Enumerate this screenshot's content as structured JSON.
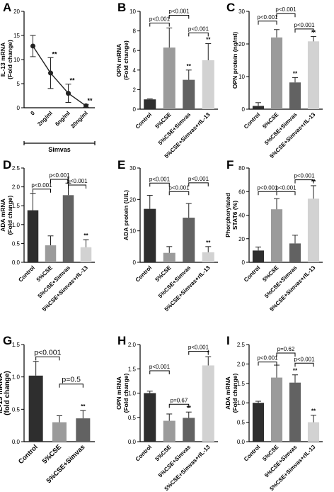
{
  "chart_data": [
    {
      "letter": "A",
      "type": "line",
      "ylabel": [
        "IL-13 mRNA",
        "(Fold change)"
      ],
      "categories": [
        "0",
        "2ng/ml",
        "6ng/ml",
        "20ng/ml"
      ],
      "values": [
        12.8,
        7.2,
        3.0,
        0.4
      ],
      "errors": [
        2.2,
        3.2,
        1.9,
        0.3
      ],
      "stars": [
        "",
        "**",
        "**",
        "**"
      ],
      "ylim": [
        0,
        20
      ],
      "yticks": [
        0,
        5,
        10,
        15,
        20
      ],
      "group_label": "Simvas",
      "brackets": []
    },
    {
      "letter": "B",
      "type": "bar",
      "ylabel": [
        "OPN mRNA",
        "(Fold change)"
      ],
      "categories": [
        "Control",
        "5%CSE",
        "5%CSE+Simvas",
        "5%CSE+Simvas+rIL-13"
      ],
      "values": [
        1.0,
        6.3,
        3.0,
        5.0
      ],
      "errors": [
        0.05,
        2.0,
        1.0,
        1.7
      ],
      "stars": [
        "",
        "",
        "**",
        "**"
      ],
      "ylim": [
        0,
        10
      ],
      "yticks": [
        0,
        2,
        4,
        6,
        8,
        10
      ],
      "brackets": [
        {
          "from": 0,
          "to": 1,
          "label": "p<0.001",
          "y": 8.8
        },
        {
          "from": 1,
          "to": 2,
          "label": "p<0.001",
          "y": 9.6
        },
        {
          "from": 2,
          "to": 3,
          "label": "p<0.001",
          "y": 7.8
        }
      ]
    },
    {
      "letter": "C",
      "type": "bar",
      "ylabel": [
        "OPN protein (ng/ml)"
      ],
      "categories": [
        "Control",
        "5%CSE",
        "5%CSE+Simvas",
        "5%CSE+Simvas+rIL-13"
      ],
      "values": [
        1.0,
        22.0,
        8.2,
        20.8
      ],
      "errors": [
        1.0,
        2.4,
        1.5,
        1.5
      ],
      "stars": [
        "",
        "",
        "**",
        "**"
      ],
      "ylim": [
        0,
        30
      ],
      "yticks": [
        0,
        10,
        20,
        30
      ],
      "brackets": [
        {
          "from": 0,
          "to": 1,
          "label": "p<0.001",
          "y": 27
        },
        {
          "from": 1,
          "to": 2,
          "label": "p<0.001",
          "y": 29.3
        },
        {
          "from": 2,
          "to": 3,
          "label": "p<0.001",
          "y": 24.6
        }
      ]
    },
    {
      "letter": "D",
      "type": "bar",
      "ylabel": [
        "ADA mRNA",
        "(Fold change)"
      ],
      "categories": [
        "Control",
        "5%CSE",
        "5%CSE+Simvas",
        "5%CSE+Simvas+rIL-13"
      ],
      "values": [
        1.38,
        0.45,
        1.78,
        0.4
      ],
      "errors": [
        0.45,
        0.25,
        0.32,
        0.2
      ],
      "stars": [
        "",
        "",
        "*",
        "**"
      ],
      "ylim": [
        0,
        2.5
      ],
      "yticks": [
        0.0,
        0.5,
        1.0,
        1.5,
        2.0,
        2.5
      ],
      "brackets": [
        {
          "from": 0,
          "to": 1,
          "label": "p<0.001",
          "y": 1.94
        },
        {
          "from": 1,
          "to": 2,
          "label": "p<0.001",
          "y": 2.2
        },
        {
          "from": 2,
          "to": 3,
          "label": "p<0.001",
          "y": 2.05
        }
      ]
    },
    {
      "letter": "E",
      "type": "bar",
      "ylabel": [
        "ADA protein (U/L)"
      ],
      "categories": [
        "Control",
        "5%CSE",
        "5%CSE+Simvas",
        "5%CSE+Simvas+rIL-13"
      ],
      "values": [
        17.0,
        3.0,
        14.2,
        3.2
      ],
      "errors": [
        4.3,
        2.0,
        4.5,
        1.8
      ],
      "stars": [
        "",
        "",
        "",
        "**"
      ],
      "ylim": [
        0,
        30
      ],
      "yticks": [
        0,
        10,
        20,
        30
      ],
      "brackets": [
        {
          "from": 0,
          "to": 1,
          "label": "p<0.001",
          "y": 25.2
        },
        {
          "from": 1,
          "to": 2,
          "label": "p<0.001",
          "y": 22.5
        },
        {
          "from": 2,
          "to": 3,
          "label": "p<0.001",
          "y": 25.3
        }
      ]
    },
    {
      "letter": "F",
      "type": "bar",
      "ylabel": [
        "Phorphorylated",
        "STAT6 (%)"
      ],
      "categories": [
        "Control",
        "5%CSE",
        "5%CSE+Simvas",
        "5%CSE+Simvas+rIL-13"
      ],
      "values": [
        10.0,
        45.0,
        16.0,
        54.0
      ],
      "errors": [
        3.0,
        9.0,
        7.0,
        11.0
      ],
      "stars": [
        "",
        "",
        "",
        "**"
      ],
      "ylim": [
        0,
        80
      ],
      "yticks": [
        0,
        20,
        40,
        60,
        80
      ],
      "brackets": [
        {
          "from": 0,
          "to": 1,
          "label": "p<0.001",
          "y": 60
        },
        {
          "from": 1,
          "to": 2,
          "label": "p<0.001",
          "y": 60
        },
        {
          "from": 2,
          "to": 3,
          "label": "p<0.001",
          "y": 70
        }
      ]
    },
    {
      "letter": "G",
      "type": "bar",
      "ylabel": [
        "IL-13 mRNA",
        "(fold change)"
      ],
      "categories": [
        "Control",
        "5%CSE",
        "5%CSE+Simvas"
      ],
      "values": [
        1.02,
        0.3,
        0.36
      ],
      "errors": [
        0.22,
        0.1,
        0.12
      ],
      "stars": [
        "",
        "",
        "**"
      ],
      "ylim": [
        0,
        1.5
      ],
      "yticks": [
        0.0,
        0.5,
        1.0,
        1.5
      ],
      "brackets": [
        {
          "from": 0,
          "to": 1,
          "label": "p<0.001",
          "y": 1.31
        },
        {
          "from": 1,
          "to": 2,
          "label": "p=0.5",
          "y": 0.89
        }
      ]
    },
    {
      "letter": "H",
      "type": "bar",
      "ylabel": [
        "OPN mRNA",
        "(Fold change)"
      ],
      "categories": [
        "Control",
        "5%CSE",
        "5%CSE+Simvas",
        "5%CSE+Simvas+rIL-13"
      ],
      "values": [
        1.0,
        0.43,
        0.49,
        1.57
      ],
      "errors": [
        0.04,
        0.14,
        0.12,
        0.18
      ],
      "stars": [
        "",
        "",
        "**",
        "*"
      ],
      "ylim": [
        0,
        2.0
      ],
      "yticks": [
        0.0,
        0.5,
        1.0,
        1.5,
        2.0
      ],
      "brackets": [
        {
          "from": 0,
          "to": 1,
          "label": "p<0.001",
          "y": 1.46
        },
        {
          "from": 1,
          "to": 2,
          "label": "p=0.67",
          "y": 0.77
        },
        {
          "from": 2,
          "to": 3,
          "label": "p<0.001",
          "y": 1.86
        }
      ]
    },
    {
      "letter": "I",
      "type": "bar",
      "ylabel": [
        "ADA mRNA",
        "(Fold change)"
      ],
      "categories": [
        "Control",
        "5%CSE",
        "5%CSE+Simvas",
        "5%CSE+Simvas+rIL-13"
      ],
      "values": [
        1.0,
        1.65,
        1.52,
        0.5
      ],
      "errors": [
        0.04,
        0.32,
        0.2,
        0.18
      ],
      "stars": [
        "",
        "",
        "**",
        "**"
      ],
      "ylim": [
        0,
        2.5
      ],
      "yticks": [
        0.0,
        0.5,
        1.0,
        1.5,
        2.0,
        2.5
      ],
      "brackets": [
        {
          "from": 0,
          "to": 1,
          "label": "p<0.001",
          "y": 2.05
        },
        {
          "from": 1,
          "to": 2,
          "label": "p=0.62",
          "y": 2.28
        },
        {
          "from": 2,
          "to": 3,
          "label": "p<0.001",
          "y": 2.02
        }
      ]
    }
  ],
  "colors": {
    "bars": [
      "#2e2e2e",
      "#9b9b9b",
      "#626262",
      "#d2d2d2"
    ],
    "axis": "#000000",
    "line": "#222222"
  },
  "marker_shape": "circle"
}
